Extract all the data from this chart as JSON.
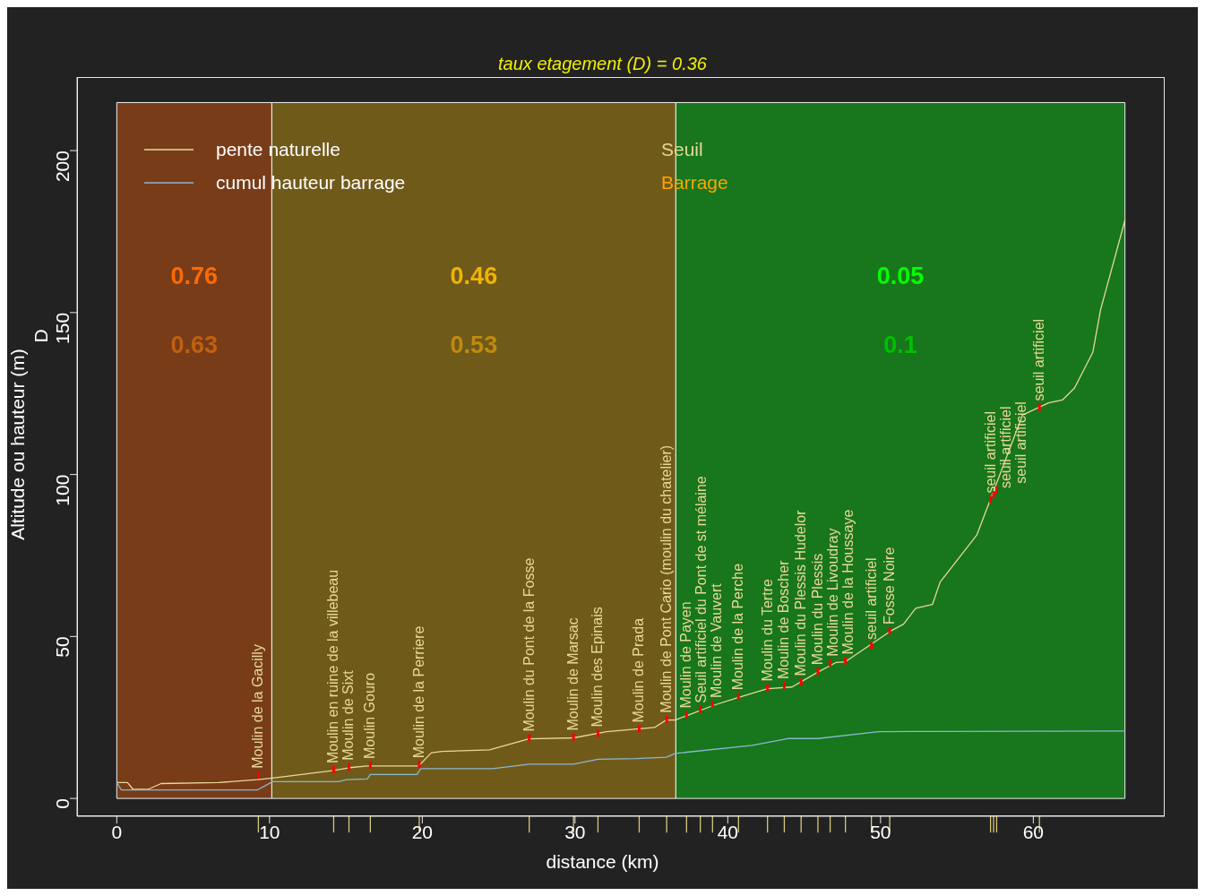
{
  "chart_data": {
    "type": "line",
    "title": "taux etagement (D) = 0.36",
    "xlabel": "distance (km)",
    "ylabel": "Altitude ou hauteur (m)",
    "y2label": "D",
    "xlim": [
      -2.6,
      68.6
    ],
    "ylim": [
      -5.5,
      222.7
    ],
    "xticks": [
      0,
      10,
      20,
      30,
      40,
      50,
      60
    ],
    "yticks": [
      0,
      50,
      100,
      150,
      200
    ],
    "grid": false,
    "legend": "top left",
    "series": [
      {
        "name": "pente naturelle",
        "color": "#e8d898",
        "x": [
          0,
          0.7,
          1.07,
          2.05,
          2.9,
          6.65,
          9.2,
          10.2,
          14.1,
          15.25,
          16.4,
          19.75,
          20.6,
          21.3,
          24.4,
          26.98,
          29.9,
          32.06,
          35.2,
          35.97,
          36.56,
          39.1,
          40.7,
          42.6,
          44.2,
          45.9,
          47.1,
          47.7,
          50.6,
          51.5,
          52.3,
          53.4,
          53.9,
          56.3,
          59.3,
          61.0,
          61.9,
          62.7,
          63.9,
          64.4,
          66.0
        ],
        "values": [
          4.9,
          4.9,
          2.8,
          2.8,
          4.6,
          4.9,
          5.8,
          6.3,
          8.6,
          9.5,
          10.0,
          10.0,
          14.1,
          14.5,
          15.0,
          18.4,
          18.7,
          20.6,
          21.9,
          24.2,
          24.2,
          28.8,
          31.2,
          33.9,
          34.4,
          39.0,
          42.0,
          42.2,
          51.5,
          53.8,
          58.7,
          59.9,
          66.8,
          81.3,
          118.4,
          122.1,
          123.0,
          126.7,
          137.8,
          150.8,
          178.5
        ]
      },
      {
        "name": "cumul hauteur barrage",
        "color": "#8ab8d0",
        "x": [
          0,
          0.3,
          9.2,
          10.2,
          14.5,
          15.05,
          16.4,
          16.6,
          19.65,
          19.9,
          24.6,
          27.0,
          29.9,
          31.5,
          34.0,
          35.97,
          36.56,
          41.6,
          44.0,
          45.9,
          49.85,
          53.4,
          66.0
        ],
        "values": [
          4.9,
          2.6,
          2.6,
          5.2,
          5.2,
          5.8,
          6.0,
          7.4,
          7.4,
          9.2,
          9.2,
          10.6,
          10.6,
          12.1,
          12.3,
          12.7,
          13.9,
          16.4,
          18.5,
          18.5,
          20.6,
          20.7,
          20.8
        ]
      }
    ],
    "bands": [
      {
        "axis": "x",
        "from": 0,
        "to": 10.15,
        "color": "#783c19"
      },
      {
        "axis": "x",
        "from": 10.15,
        "to": 36.6,
        "color": "#705a1a"
      },
      {
        "axis": "x",
        "from": 36.6,
        "to": 66.0,
        "color": "#18761c"
      }
    ],
    "annotations": [
      "Seuil",
      "Barrage",
      "0.76",
      "0.63",
      "0.46",
      "0.53",
      "0.05",
      "0.1",
      {
        "text": "Moulin de la Gacilly",
        "x": 9.27,
        "y": 7.0
      },
      {
        "text": "Moulin en ruine de la villebeau",
        "x": 14.2,
        "y": 8.6
      },
      {
        "text": "Moulin de Sixt",
        "x": 15.2,
        "y": 9.5
      },
      {
        "text": "Moulin Gouro",
        "x": 16.6,
        "y": 10.0
      },
      {
        "text": "Moulin de la Perriere",
        "x": 19.8,
        "y": 10.2
      },
      {
        "text": "Moulin du Pont de la Fosse",
        "x": 27.0,
        "y": 18.4
      },
      {
        "text": "Moulin de Marsac",
        "x": 29.9,
        "y": 18.7
      },
      {
        "text": "Moulin des Epinais",
        "x": 31.5,
        "y": 19.8
      },
      {
        "text": "Moulin de Prada",
        "x": 34.2,
        "y": 21.2
      },
      {
        "text": "Moulin de Pont Cario (moulin du chatelier)",
        "x": 36.0,
        "y": 24.2
      },
      {
        "text": "Moulin de Payen",
        "x": 37.3,
        "y": 25.6
      },
      {
        "text": "Seuil artificiel du Pont de st mélaine",
        "x": 38.2,
        "y": 27.2
      },
      {
        "text": "Moulin de Vauvert",
        "x": 39.0,
        "y": 28.8
      },
      {
        "text": "Moulin de la Perche",
        "x": 40.7,
        "y": 31.2
      },
      {
        "text": "Moulin du Tertre",
        "x": 42.6,
        "y": 33.9
      },
      {
        "text": "Moulin de Boscher",
        "x": 43.7,
        "y": 34.6
      },
      {
        "text": "Moulin du Plessis Hudelor",
        "x": 44.8,
        "y": 35.6
      },
      {
        "text": "Moulin du Plessis",
        "x": 45.9,
        "y": 39.0
      },
      {
        "text": "Moulin de Livoudray",
        "x": 46.7,
        "y": 41.6
      },
      {
        "text": "Moulin de la Houssaye",
        "x": 47.7,
        "y": 42.2
      },
      {
        "text": "seuil artificiel",
        "x": 49.4,
        "y": 46.8
      },
      {
        "text": "Fosse Noire",
        "x": 50.6,
        "y": 51.5
      },
      {
        "text": "seuil artificiel",
        "x": 57.2,
        "y": 92.0
      },
      {
        "text": "seuil artificiel",
        "x": 57.4,
        "y": 93.5
      },
      {
        "text": "seuil artificiel",
        "x": 57.6,
        "y": 95.0
      },
      {
        "text": "seuil artificiel",
        "x": 60.4,
        "y": 120.5
      }
    ]
  }
}
